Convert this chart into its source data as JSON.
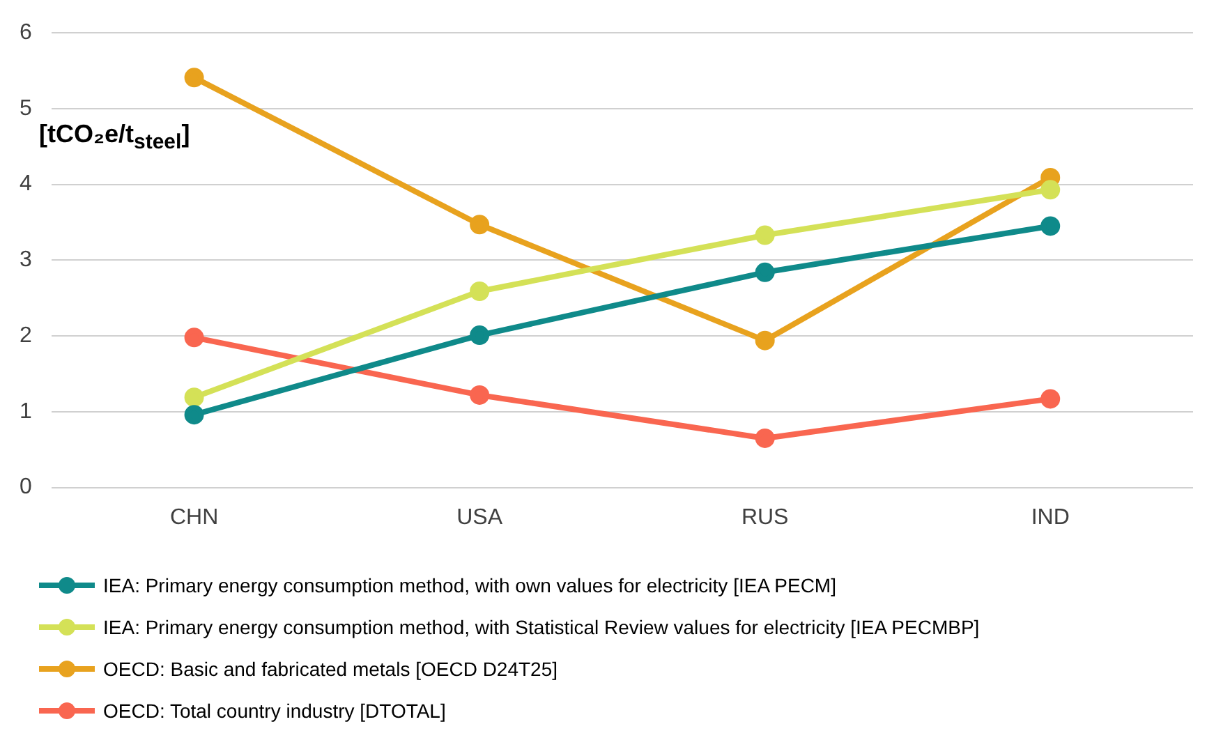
{
  "chart_data": {
    "type": "line",
    "ylabel": "[tCO₂e/t$_{steel}$]",
    "categories": [
      "CHN",
      "USA",
      "RUS",
      "IND"
    ],
    "series": [
      {
        "name": "IEA: Primary energy consumption method, with own values for electricity [IEA PECM]",
        "color": "#0f8a8a",
        "values": [
          0.96,
          2.01,
          2.84,
          3.45
        ]
      },
      {
        "name": "IEA: Primary energy consumption method, with Statistical Review values for electricity [IEA PECMBP]",
        "color": "#d4e157",
        "values": [
          1.19,
          2.59,
          3.33,
          3.93
        ]
      },
      {
        "name": "OECD: Basic and fabricated metals [OECD D24T25]",
        "color": "#e8a21e",
        "values": [
          5.41,
          3.47,
          1.94,
          4.09
        ]
      },
      {
        "name": "OECD: Total country industry [DTOTAL]",
        "color": "#f96650",
        "values": [
          1.98,
          1.22,
          0.65,
          1.17
        ]
      }
    ],
    "ylim": [
      0,
      6
    ],
    "yticks": [
      0,
      1,
      2,
      3,
      4,
      5,
      6
    ],
    "grid": "y",
    "legend": "bottom",
    "marker": "circle",
    "line_style": "solid"
  }
}
